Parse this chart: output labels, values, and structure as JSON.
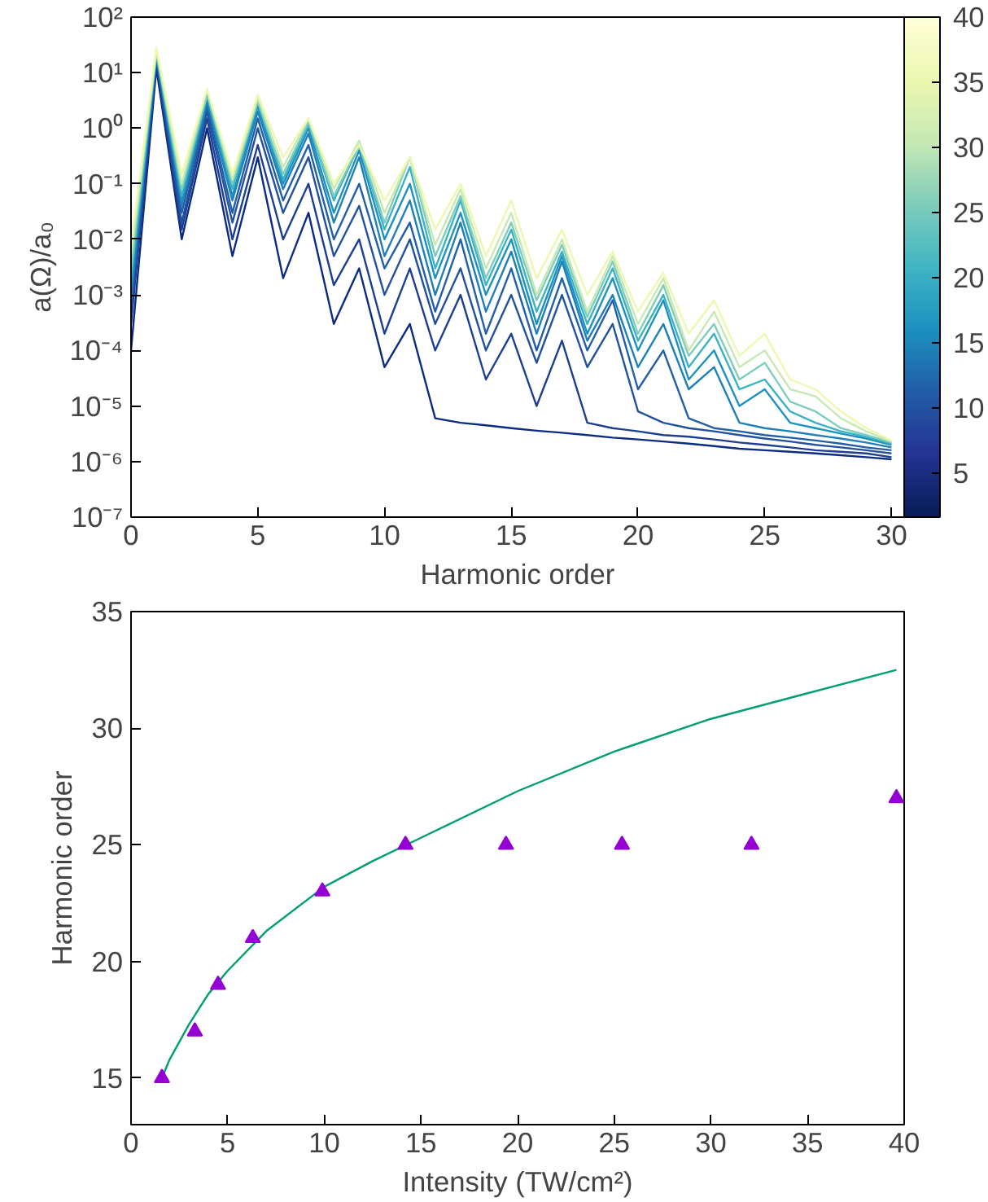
{
  "chart_data": [
    {
      "type": "line",
      "xlabel": "Harmonic order",
      "ylabel": "a(Ω)/a₀",
      "log": "y",
      "x": [
        0,
        1,
        2,
        3,
        4,
        5,
        6,
        7,
        8,
        9,
        10,
        11,
        12,
        13,
        14,
        15,
        16,
        17,
        18,
        19,
        20,
        21,
        22,
        23,
        24,
        25,
        26,
        27,
        28,
        29,
        30
      ],
      "xlim": [
        0,
        30.5
      ],
      "xticks": [
        0,
        5,
        10,
        15,
        20,
        25,
        30
      ],
      "ylim": [
        1e-07,
        100
      ],
      "yticks": [
        {
          "value": 1e-07,
          "label": "10⁻⁷"
        },
        {
          "value": 1e-06,
          "label": "10⁻⁶"
        },
        {
          "value": 1e-05,
          "label": "10⁻⁵"
        },
        {
          "value": 0.0001,
          "label": "10⁻⁴"
        },
        {
          "value": 0.001,
          "label": "10⁻³"
        },
        {
          "value": 0.01,
          "label": "10⁻²"
        },
        {
          "value": 0.1,
          "label": "10⁻¹"
        },
        {
          "value": 1,
          "label": "10⁰"
        },
        {
          "value": 10,
          "label": "10¹"
        },
        {
          "value": 100,
          "label": "10²"
        }
      ],
      "clim": [
        1.6,
        40
      ],
      "cticks": [
        5,
        10,
        15,
        20,
        25,
        30,
        35,
        40
      ],
      "series": [
        {
          "color": "#0c2c84",
          "values": [
            0.0001,
            12,
            0.01,
            1,
            0.005,
            0.3,
            0.002,
            0.03,
            0.0003,
            0.003,
            5e-05,
            0.0003,
            6e-06,
            5e-06,
            4.5e-06,
            4e-06,
            3.6e-06,
            3.3e-06,
            3e-06,
            2.7e-06,
            2.5e-06,
            2.3e-06,
            2.1e-06,
            1.9e-06,
            1.7e-06,
            1.6e-06,
            1.5e-06,
            1.4e-06,
            1.3e-06,
            1.2e-06,
            1.1e-06
          ]
        },
        {
          "color": "#1d3f93",
          "values": [
            0.0003,
            15,
            0.015,
            1.5,
            0.01,
            0.5,
            0.01,
            0.1,
            0.0015,
            0.01,
            0.0002,
            0.003,
            0.0001,
            0.001,
            3e-05,
            0.0002,
            1e-05,
            0.00015,
            5e-06,
            4e-06,
            3.5e-06,
            3e-06,
            2.8e-06,
            2.5e-06,
            2.2e-06,
            2e-06,
            1.8e-06,
            1.6e-06,
            1.5e-06,
            1.4e-06,
            1.2e-06
          ]
        },
        {
          "color": "#22519d",
          "values": [
            0.0005,
            18,
            0.02,
            2,
            0.02,
            1,
            0.03,
            0.3,
            0.005,
            0.04,
            0.001,
            0.01,
            0.0003,
            0.003,
            0.0001,
            0.001,
            6e-05,
            0.001,
            5e-05,
            0.0003,
            8e-06,
            5e-06,
            4e-06,
            3.5e-06,
            3e-06,
            2.6e-06,
            2.3e-06,
            2e-06,
            1.8e-06,
            1.6e-06,
            1.4e-06
          ]
        },
        {
          "color": "#225ea8",
          "values": [
            0.0008,
            20,
            0.03,
            2.5,
            0.03,
            1.5,
            0.05,
            0.5,
            0.01,
            0.1,
            0.003,
            0.02,
            0.0005,
            0.01,
            0.0002,
            0.003,
            0.0001,
            0.002,
            0.0001,
            0.0008,
            2e-05,
            0.0001,
            6e-06,
            4e-06,
            3.5e-06,
            3e-06,
            2.7e-06,
            2.4e-06,
            2.1e-06,
            1.8e-06,
            1.6e-06
          ]
        },
        {
          "color": "#1f80b8",
          "values": [
            0.001,
            20,
            0.04,
            3,
            0.05,
            2,
            0.08,
            0.8,
            0.02,
            0.3,
            0.005,
            0.05,
            0.001,
            0.02,
            0.0005,
            0.006,
            0.0002,
            0.004,
            0.00015,
            0.001,
            5e-05,
            0.0003,
            2e-05,
            5e-05,
            5e-06,
            4e-06,
            3.5e-06,
            3e-06,
            2.6e-06,
            2.2e-06,
            1.8e-06
          ]
        },
        {
          "color": "#1d91c0",
          "values": [
            0.0015,
            22,
            0.05,
            3.5,
            0.06,
            2.5,
            0.1,
            1,
            0.03,
            0.4,
            0.01,
            0.1,
            0.002,
            0.03,
            0.001,
            0.01,
            0.0003,
            0.005,
            0.0002,
            0.002,
            0.0001,
            0.0008,
            3e-05,
            0.0001,
            1e-05,
            2e-05,
            5e-06,
            4e-06,
            3.2e-06,
            2.6e-06,
            2e-06
          ]
        },
        {
          "color": "#3cb1c3",
          "values": [
            0.002,
            22,
            0.06,
            4,
            0.08,
            3,
            0.12,
            1.2,
            0.05,
            0.5,
            0.015,
            0.2,
            0.003,
            0.05,
            0.0015,
            0.015,
            0.0005,
            0.006,
            0.0003,
            0.003,
            0.00015,
            0.001,
            5e-05,
            0.0002,
            2e-05,
            3e-05,
            8e-06,
            5e-06,
            3.5e-06,
            2.8e-06,
            2.1e-06
          ]
        },
        {
          "color": "#7fcdbb",
          "values": [
            0.003,
            23,
            0.08,
            4,
            0.1,
            3,
            0.15,
            1.3,
            0.06,
            0.5,
            0.02,
            0.3,
            0.005,
            0.06,
            0.002,
            0.02,
            0.0008,
            0.008,
            0.0004,
            0.004,
            0.0002,
            0.0015,
            8e-05,
            0.0003,
            3e-05,
            6e-05,
            1.2e-05,
            8e-06,
            4e-06,
            3e-06,
            2.2e-06
          ]
        },
        {
          "color": "#c7e9b4",
          "values": [
            0.005,
            25,
            0.1,
            5,
            0.12,
            3.5,
            0.2,
            1.5,
            0.08,
            0.6,
            0.03,
            0.3,
            0.008,
            0.08,
            0.003,
            0.03,
            0.001,
            0.01,
            0.0005,
            0.005,
            0.0003,
            0.002,
            0.0001,
            0.0005,
            5e-05,
            0.0001,
            2e-05,
            1.5e-05,
            6e-06,
            3.5e-06,
            2.3e-06
          ]
        },
        {
          "color": "#edf8b1",
          "values": [
            0.008,
            28,
            0.15,
            5,
            0.15,
            4,
            0.3,
            1.5,
            0.1,
            0.5,
            0.05,
            0.3,
            0.015,
            0.1,
            0.005,
            0.05,
            0.002,
            0.015,
            0.001,
            0.006,
            0.0005,
            0.0025,
            0.0002,
            0.0008,
            8e-05,
            0.0002,
            3e-05,
            2e-05,
            8e-06,
            4e-06,
            2.4e-06
          ]
        }
      ]
    },
    {
      "type": "scatter",
      "xlabel": "Intensity (TW/cm²)",
      "ylabel": "Harmonic order",
      "xlim": [
        0,
        40
      ],
      "xticks": [
        0,
        5,
        10,
        15,
        20,
        25,
        30,
        35,
        40
      ],
      "ylim": [
        13,
        35
      ],
      "yticks": [
        15,
        20,
        25,
        30,
        35
      ],
      "series": [
        {
          "type": "line",
          "color": "#009e73",
          "x": [
            1.6,
            2,
            3,
            4,
            5,
            7,
            10,
            12.5,
            15,
            20,
            25,
            30,
            35,
            39.6
          ],
          "values": [
            15,
            15.8,
            17.3,
            18.6,
            19.6,
            21.3,
            23.2,
            24.3,
            25.3,
            27.3,
            29,
            30.4,
            31.5,
            32.5
          ]
        },
        {
          "type": "scatter",
          "color": "#9400d3",
          "marker": "triangle",
          "x": [
            1.6,
            3.3,
            4.5,
            6.3,
            9.9,
            14.2,
            19.4,
            25.4,
            32.1,
            39.6
          ],
          "values": [
            15,
            17,
            19,
            21,
            23,
            25,
            25,
            25,
            25,
            27
          ]
        }
      ]
    }
  ]
}
